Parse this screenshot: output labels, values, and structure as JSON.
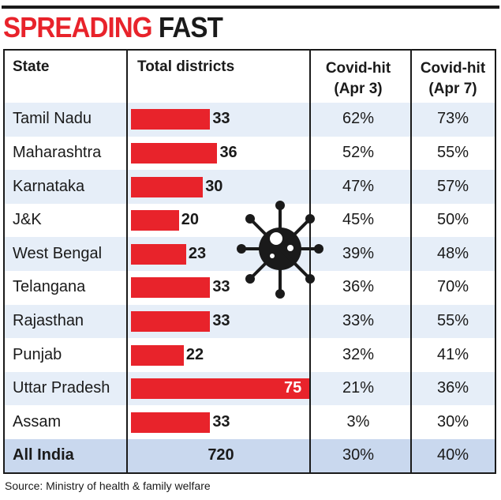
{
  "title": {
    "part1": "SPREADING",
    "part2": "FAST"
  },
  "columns": {
    "state": "State",
    "total": "Total districts",
    "apr3": [
      "Covid-hit",
      "(Apr 3)"
    ],
    "apr7": [
      "Covid-hit",
      "(Apr 7)"
    ]
  },
  "colors": {
    "accent": "#e8232b",
    "row_shade": "#e6eef8",
    "footer_shade": "#c9d8ee",
    "text": "#1a1a1a"
  },
  "icon": "coronavirus-icon",
  "chart_data": {
    "type": "table",
    "bar_column": "Total districts",
    "bar_max": 75,
    "rows": [
      {
        "state": "Tamil Nadu",
        "total": 33,
        "apr3": "62%",
        "apr7": "73%"
      },
      {
        "state": "Maharashtra",
        "total": 36,
        "apr3": "52%",
        "apr7": "55%"
      },
      {
        "state": "Karnataka",
        "total": 30,
        "apr3": "47%",
        "apr7": "57%"
      },
      {
        "state": "J&K",
        "total": 20,
        "apr3": "45%",
        "apr7": "50%"
      },
      {
        "state": "West Bengal",
        "total": 23,
        "apr3": "39%",
        "apr7": "48%"
      },
      {
        "state": "Telangana",
        "total": 33,
        "apr3": "36%",
        "apr7": "70%"
      },
      {
        "state": "Rajasthan",
        "total": 33,
        "apr3": "33%",
        "apr7": "55%"
      },
      {
        "state": "Punjab",
        "total": 22,
        "apr3": "32%",
        "apr7": "41%"
      },
      {
        "state": "Uttar Pradesh",
        "total": 75,
        "apr3": "21%",
        "apr7": "36%"
      },
      {
        "state": "Assam",
        "total": 33,
        "apr3": "3%",
        "apr7": "30%"
      }
    ],
    "footer": {
      "state": "All India",
      "total": "720",
      "apr3": "30%",
      "apr7": "40%"
    }
  },
  "source": "Source: Ministry of health & family welfare"
}
